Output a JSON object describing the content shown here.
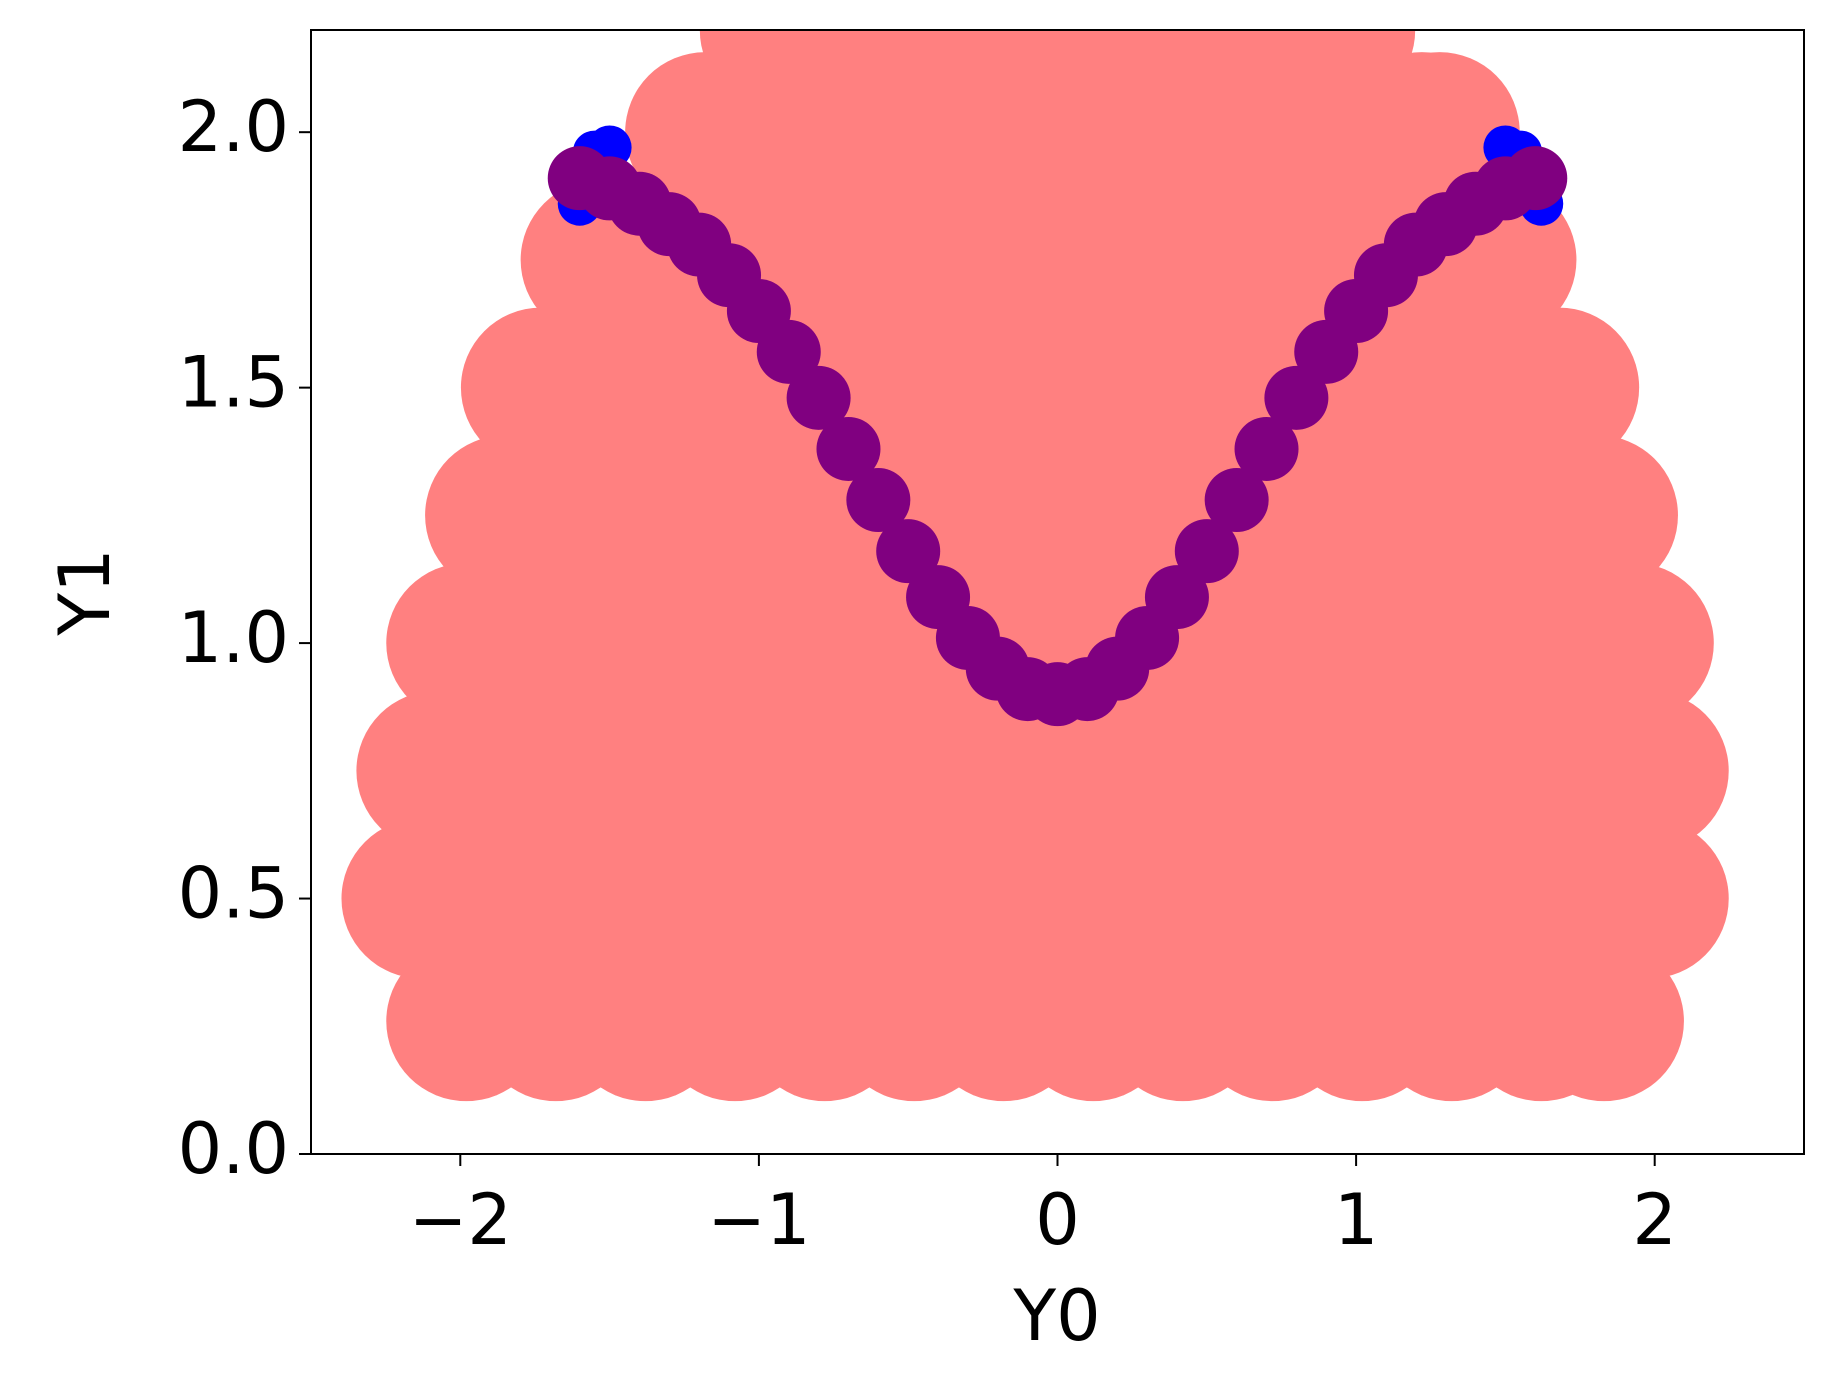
{
  "chart_data": {
    "type": "scatter",
    "x_label": "Y0",
    "y_label": "Y1",
    "xlim": [
      -2.5,
      2.5
    ],
    "ylim": [
      0,
      2.2
    ],
    "xticks": [
      {
        "value": -2,
        "label": "−2"
      },
      {
        "value": -1,
        "label": "−1"
      },
      0,
      1,
      2
    ],
    "yticks": [
      {
        "value": 0,
        "label": "0.0"
      },
      0.5,
      {
        "value": 1,
        "label": "1.0"
      },
      1.5,
      {
        "value": 2,
        "label": "2.0"
      }
    ],
    "series": [
      {
        "color": "#ff8080",
        "x": [
          -1.98,
          -1.68,
          -1.38,
          -1.08,
          -0.78,
          -0.48,
          -0.18,
          0.12,
          0.42,
          0.72,
          1.02,
          1.32,
          1.62,
          1.83,
          -2.13,
          -1.83,
          -1.53,
          -1.23,
          -0.93,
          -0.63,
          -0.33,
          -0.03,
          0.27,
          0.57,
          0.87,
          1.17,
          1.47,
          1.77,
          1.98,
          -2.08,
          -1.78,
          -1.48,
          -1.18,
          -0.88,
          -0.58,
          -0.28,
          0.02,
          0.32,
          0.62,
          0.92,
          1.22,
          1.52,
          1.82,
          1.98,
          -1.98,
          -1.68,
          -1.38,
          -1.08,
          -0.78,
          -0.48,
          -0.18,
          0.12,
          0.42,
          0.72,
          1.02,
          1.32,
          1.62,
          1.93,
          -1.85,
          -1.55,
          -1.25,
          -0.95,
          -0.65,
          -0.35,
          -0.05,
          0.25,
          0.55,
          0.85,
          1.15,
          1.45,
          1.81,
          -1.73,
          -1.43,
          -1.13,
          -0.83,
          -0.53,
          -0.23,
          0.07,
          0.37,
          0.67,
          0.97,
          1.27,
          1.57,
          1.68,
          -1.53,
          -1.23,
          -0.93,
          -0.63,
          -0.33,
          -0.03,
          0.27,
          0.57,
          0.87,
          1.17,
          1.47,
          -1.18,
          -0.88,
          -0.58,
          -0.28,
          0.02,
          0.32,
          0.62,
          0.92,
          1.22,
          1.28,
          -0.93,
          -0.63,
          -0.33,
          -0.03,
          0.27,
          0.57,
          0.87,
          0.93
        ],
        "values": [
          0.26,
          0.26,
          0.26,
          0.26,
          0.26,
          0.26,
          0.26,
          0.26,
          0.26,
          0.26,
          0.26,
          0.26,
          0.26,
          0.26,
          0.5,
          0.5,
          0.5,
          0.5,
          0.5,
          0.5,
          0.5,
          0.5,
          0.5,
          0.5,
          0.5,
          0.5,
          0.5,
          0.5,
          0.5,
          0.75,
          0.75,
          0.75,
          0.75,
          0.75,
          0.75,
          0.75,
          0.75,
          0.75,
          0.75,
          0.75,
          0.75,
          0.75,
          0.75,
          0.75,
          1.0,
          1.0,
          1.0,
          1.0,
          1.0,
          1.0,
          1.0,
          1.0,
          1.0,
          1.0,
          1.0,
          1.0,
          1.0,
          1.0,
          1.25,
          1.25,
          1.25,
          1.25,
          1.25,
          1.25,
          1.25,
          1.25,
          1.25,
          1.25,
          1.25,
          1.25,
          1.25,
          1.5,
          1.5,
          1.5,
          1.5,
          1.5,
          1.5,
          1.5,
          1.5,
          1.5,
          1.5,
          1.5,
          1.5,
          1.5,
          1.75,
          1.75,
          1.75,
          1.75,
          1.75,
          1.75,
          1.75,
          1.75,
          1.75,
          1.75,
          1.75,
          2.0,
          2.0,
          2.0,
          2.0,
          2.0,
          2.0,
          2.0,
          2.0,
          2.0,
          2.0,
          2.2,
          2.2,
          2.2,
          2.2,
          2.2,
          2.2,
          2.2,
          2.2
        ]
      },
      {
        "color": "#0000ff",
        "x": [
          -1.5,
          -1.55,
          -1.62,
          -1.6,
          1.5,
          1.55,
          1.63,
          1.62
        ],
        "values": [
          1.97,
          1.96,
          1.91,
          1.86,
          1.97,
          1.96,
          1.91,
          1.86
        ]
      },
      {
        "color": "#800080",
        "x": [
          -1.6,
          -1.5,
          -1.4,
          -1.3,
          -1.2,
          -1.1,
          -1.0,
          -0.9,
          -0.8,
          -0.7,
          -0.6,
          -0.5,
          -0.4,
          -0.3,
          -0.2,
          -0.1,
          0,
          0.1,
          0.2,
          0.3,
          0.4,
          0.5,
          0.6,
          0.7,
          0.8,
          0.9,
          1.0,
          1.1,
          1.2,
          1.3,
          1.4,
          1.5,
          1.6
        ],
        "values": [
          1.91,
          1.89,
          1.86,
          1.82,
          1.78,
          1.72,
          1.65,
          1.57,
          1.48,
          1.38,
          1.28,
          1.18,
          1.09,
          1.01,
          0.95,
          0.91,
          0.9,
          0.91,
          0.95,
          1.01,
          1.09,
          1.18,
          1.28,
          1.38,
          1.48,
          1.57,
          1.65,
          1.72,
          1.78,
          1.82,
          1.86,
          1.89,
          1.91
        ]
      }
    ]
  }
}
